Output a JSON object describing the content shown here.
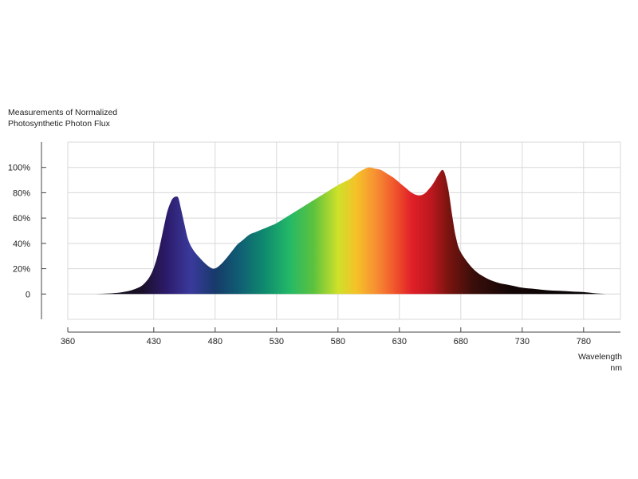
{
  "chart_data": {
    "type": "area",
    "title": "Measurements of Normalized\nPhotosynthetic Photon Flux",
    "xlabel": "Wavelength",
    "xunit": "nm",
    "ylabel": "",
    "xlim": [
      360,
      810
    ],
    "ylim": [
      -20,
      120
    ],
    "grid": true,
    "x_ticks": [
      {
        "value": 360,
        "label": "360"
      },
      {
        "value": 430,
        "label": "430"
      },
      {
        "value": 480,
        "label": "480"
      },
      {
        "value": 530,
        "label": "530"
      },
      {
        "value": 580,
        "label": "580"
      },
      {
        "value": 630,
        "label": "630"
      },
      {
        "value": 680,
        "label": "680"
      },
      {
        "value": 730,
        "label": "730"
      },
      {
        "value": 780,
        "label": "780"
      }
    ],
    "y_ticks": [
      {
        "value": 0,
        "label": "0"
      },
      {
        "value": 20,
        "label": "20%"
      },
      {
        "value": 40,
        "label": "40%"
      },
      {
        "value": 60,
        "label": "60%"
      },
      {
        "value": 80,
        "label": "80%"
      },
      {
        "value": 100,
        "label": "100%"
      }
    ],
    "series": [
      {
        "x": [
          380,
          395,
          405,
          415,
          422,
          428,
          433,
          438,
          441,
          444,
          446,
          448,
          450,
          452,
          455,
          458,
          462,
          467,
          472,
          476,
          479,
          483,
          488,
          493,
          498,
          503,
          508,
          513,
          518,
          523,
          530,
          540,
          550,
          560,
          570,
          580,
          590,
          595,
          600,
          605,
          610,
          615,
          620,
          625,
          630,
          635,
          640,
          645,
          650,
          655,
          658,
          661,
          663,
          665,
          667,
          670,
          673,
          676,
          680,
          690,
          700,
          710,
          720,
          730,
          740,
          750,
          760,
          770,
          780,
          790,
          800
        ],
        "y": [
          0,
          0.5,
          1.5,
          4,
          8,
          16,
          30,
          52,
          65,
          73,
          76,
          77,
          76,
          68,
          55,
          43,
          35,
          29,
          24,
          21,
          20,
          22,
          27,
          33,
          39,
          43,
          47,
          49,
          51,
          53,
          56,
          62,
          68,
          74,
          80,
          86,
          91,
          95,
          98,
          100,
          99,
          98,
          95,
          92,
          88,
          84,
          80,
          78,
          79,
          84,
          88,
          93,
          96,
          98,
          95,
          82,
          62,
          45,
          33,
          20,
          13,
          9,
          7,
          5,
          4,
          3,
          2.5,
          2,
          1.5,
          0.5,
          0
        ]
      }
    ],
    "colors": {
      "spectrum": [
        {
          "nm": 380,
          "color": "#0a0a10"
        },
        {
          "nm": 420,
          "color": "#1a1028"
        },
        {
          "nm": 440,
          "color": "#2c1a6a"
        },
        {
          "nm": 460,
          "color": "#3a3a9c"
        },
        {
          "nm": 480,
          "color": "#173a6a"
        },
        {
          "nm": 500,
          "color": "#0f5e73"
        },
        {
          "nm": 520,
          "color": "#0f8a6e"
        },
        {
          "nm": 540,
          "color": "#22b868"
        },
        {
          "nm": 560,
          "color": "#5cc23e"
        },
        {
          "nm": 580,
          "color": "#cfe02a"
        },
        {
          "nm": 595,
          "color": "#f5c128"
        },
        {
          "nm": 610,
          "color": "#f79233"
        },
        {
          "nm": 625,
          "color": "#f15a2c"
        },
        {
          "nm": 640,
          "color": "#e02028"
        },
        {
          "nm": 655,
          "color": "#c0181f"
        },
        {
          "nm": 670,
          "color": "#7a1410"
        },
        {
          "nm": 690,
          "color": "#3a0e0a"
        },
        {
          "nm": 720,
          "color": "#140606"
        },
        {
          "nm": 800,
          "color": "#050505"
        }
      ],
      "grid": "#d8d8d8",
      "axis": "#444444"
    }
  }
}
